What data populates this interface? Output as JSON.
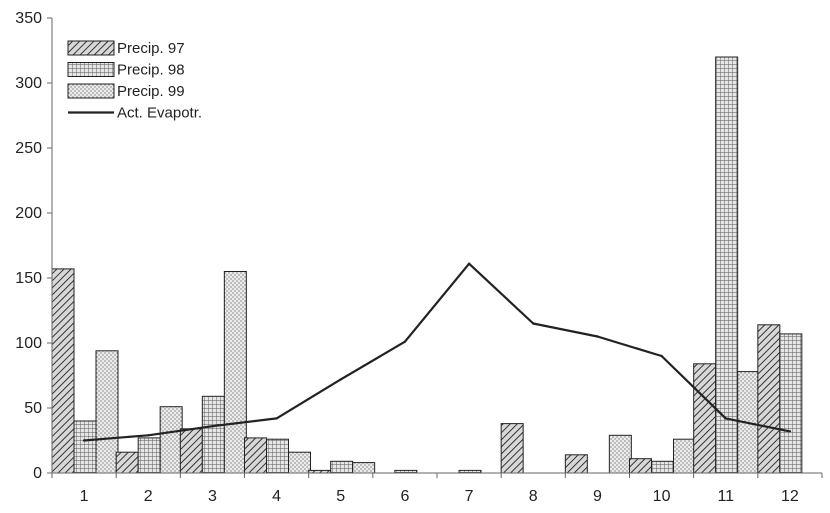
{
  "chart_data": {
    "type": "bar",
    "categories": [
      "1",
      "2",
      "3",
      "4",
      "5",
      "6",
      "7",
      "8",
      "9",
      "10",
      "11",
      "12"
    ],
    "series": [
      {
        "name": "Precip. 97",
        "kind": "bar",
        "pattern": "diagonal-hatch",
        "values": [
          157,
          16,
          34,
          27,
          2,
          0,
          0,
          38,
          14,
          11,
          84,
          114
        ]
      },
      {
        "name": "Precip. 98",
        "kind": "bar",
        "pattern": "grid",
        "values": [
          40,
          27,
          59,
          26,
          9,
          2,
          2,
          0,
          0,
          9,
          320,
          107
        ]
      },
      {
        "name": "Precip. 99",
        "kind": "bar",
        "pattern": "dots",
        "values": [
          94,
          51,
          155,
          16,
          8,
          0,
          0,
          0,
          29,
          26,
          78,
          0
        ]
      },
      {
        "name": "Act. Evapotr.",
        "kind": "line",
        "values": [
          25,
          29,
          36,
          42,
          72,
          101,
          161,
          115,
          105,
          90,
          42,
          32
        ]
      }
    ],
    "ylim": [
      0,
      350
    ],
    "yticks": [
      0,
      50,
      100,
      150,
      200,
      250,
      300,
      350
    ],
    "xlabel": "",
    "ylabel": "",
    "grid": false,
    "legend_position": "top-left",
    "colors": {
      "bar_fill": "#dddddd",
      "bar_stroke": "#222222",
      "line": "#222222",
      "axis": "#666666"
    }
  }
}
